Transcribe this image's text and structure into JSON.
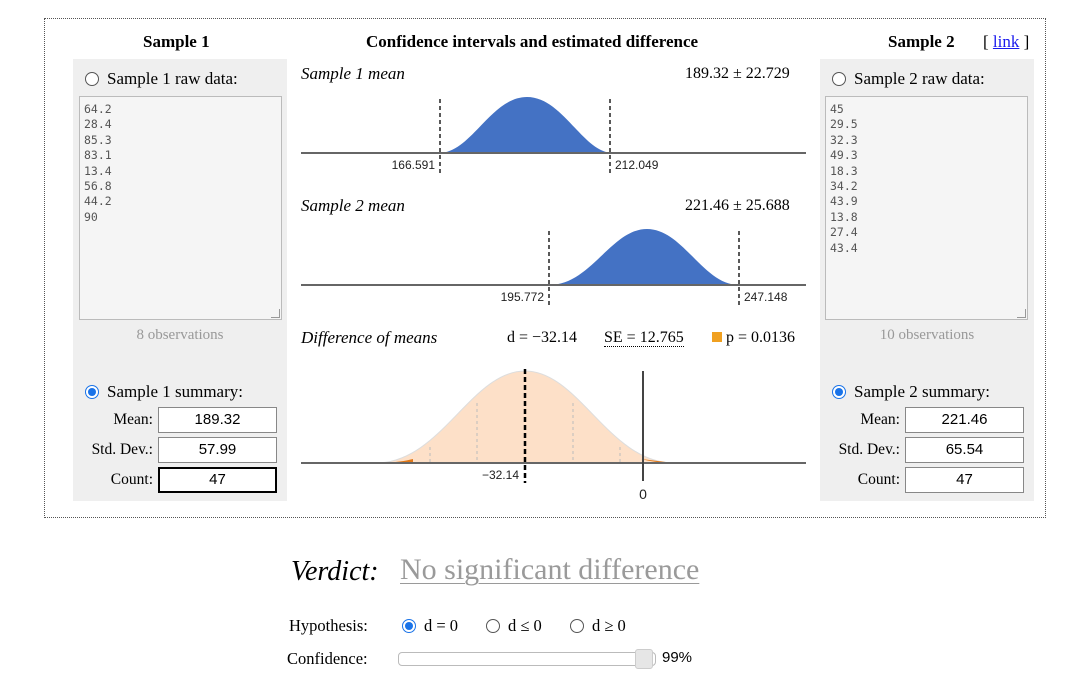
{
  "headers": {
    "sample1": "Sample 1",
    "middle": "Confidence intervals and estimated difference",
    "sample2": "Sample 2",
    "link_open": "[ ",
    "link": "link",
    "link_close": " ]"
  },
  "sample1": {
    "raw_label": "Sample 1 raw data:",
    "raw_selected": false,
    "raw_values": "64.2\n28.4\n85.3\n83.1\n13.4\n56.8\n44.2\n90",
    "observations": "8 observations",
    "summary_label": "Sample 1 summary:",
    "summary_selected": true,
    "mean_label": "Mean:",
    "mean": "189.32",
    "sd_label": "Std. Dev.:",
    "sd": "57.99",
    "count_label": "Count:",
    "count": "47"
  },
  "sample2": {
    "raw_label": "Sample 2 raw data:",
    "raw_selected": false,
    "raw_values": "45\n29.5\n32.3\n49.3\n18.3\n34.2\n43.9\n13.8\n27.4\n43.4",
    "observations": "10 observations",
    "summary_label": "Sample 2 summary:",
    "summary_selected": true,
    "mean_label": "Mean:",
    "mean": "221.46",
    "sd_label": "Std. Dev.:",
    "sd": "65.54",
    "count_label": "Count:",
    "count": "47"
  },
  "plots": {
    "mean1": {
      "title": "Sample 1 mean",
      "summary": "189.32 ± 22.729",
      "lower": "166.591",
      "upper": "212.049",
      "color": "#4472c4"
    },
    "mean2": {
      "title": "Sample 2 mean",
      "summary": "221.46 ± 25.688",
      "lower": "195.772",
      "upper": "247.148",
      "color": "#4472c4"
    },
    "diff": {
      "title": "Difference of means",
      "d": "d = −32.14",
      "se": "SE = 12.765",
      "p": "p = 0.0136",
      "p_color": "#f0a020",
      "d_label": "−32.14",
      "zero_label": "0",
      "fill_color": "#fde0c8",
      "tail_color": "#e07818"
    }
  },
  "verdict": {
    "label": "Verdict:",
    "value": "No significant difference"
  },
  "hypothesis": {
    "label": "Hypothesis:",
    "options": [
      "d = 0",
      "d ≤ 0",
      "d ≥ 0"
    ],
    "selected": "d = 0"
  },
  "confidence": {
    "label": "Confidence:",
    "value": "99%",
    "fraction": 0.99
  }
}
